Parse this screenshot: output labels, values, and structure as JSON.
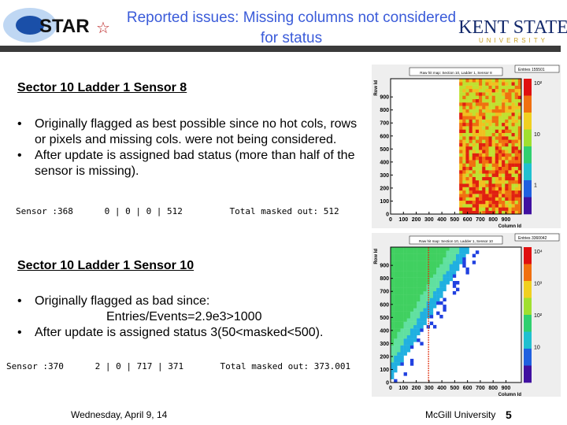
{
  "header": {
    "title": "Reported issues: Missing columns not considered for status",
    "logo_left": "STAR",
    "logo_right": "KENT STATE",
    "logo_right_sub": "UNIVERSITY"
  },
  "section1": {
    "heading": "Sector 10 Ladder 1 Sensor 8",
    "bullets": [
      "Originally flagged as best possible since no hot cols, rows or pixels and missing cols. were not being considered.",
      "After update is assigned bad status (more than half of the sensor is missing)."
    ],
    "console": "Sensor :368      0 | 0 | 0 | 512         Total masked out: 512"
  },
  "section2": {
    "heading": "Sector 10 Ladder 1 Sensor 10",
    "bullets": [
      "Originally flagged as bad since:",
      "After update is assigned status 3(50<masked<500)."
    ],
    "note": "Entries/Events=2.9e3>1000",
    "console": "Sensor :370      2 | 0 | 717 | 371       Total masked out: 373.001"
  },
  "plots": [
    {
      "title": "Raw hit map: Section 10, Ladder 1, Sensor 8",
      "entries": "Entries  155501",
      "ylabel": "Row Id",
      "xlabel": "Column Id",
      "yticks": [
        0,
        100,
        200,
        300,
        400,
        500,
        600,
        700,
        800,
        900
      ],
      "xticks": [
        0,
        100,
        200,
        300,
        400,
        500,
        600,
        700,
        800,
        900
      ],
      "colorbar": [
        "10²",
        "10",
        "1"
      ]
    },
    {
      "title": "Raw hit map: Section 10, Ladder 1, Sensor 10",
      "entries": "Entries  3360042",
      "ylabel": "Row Id",
      "xlabel": "Column Id",
      "yticks": [
        0,
        100,
        200,
        300,
        400,
        500,
        600,
        700,
        800,
        900
      ],
      "xticks": [
        0,
        100,
        200,
        300,
        400,
        500,
        600,
        700,
        800,
        900
      ],
      "colorbar": [
        "10⁴",
        "10³",
        "10²",
        "10"
      ]
    }
  ],
  "footer": {
    "date": "Wednesday, April 9, 14",
    "org": "McGill University",
    "page": "5"
  }
}
